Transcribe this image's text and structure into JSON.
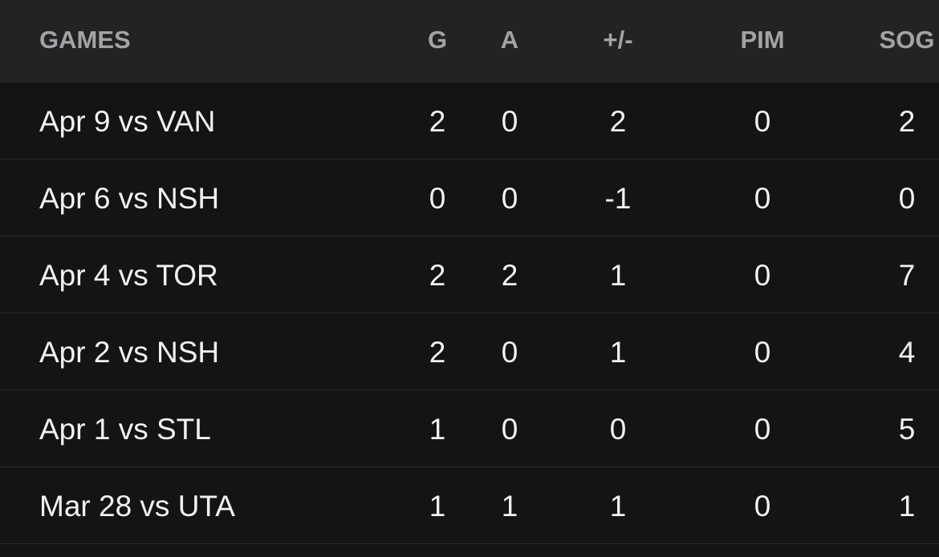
{
  "table": {
    "header": [
      "GAMES",
      "G",
      "A",
      "+/-",
      "PIM",
      "SOG"
    ],
    "rows": [
      [
        "Apr 9 vs VAN",
        2,
        0,
        2,
        0,
        2
      ],
      [
        "Apr 6 vs NSH",
        0,
        0,
        -1,
        0,
        0
      ],
      [
        "Apr 4 vs TOR",
        2,
        2,
        1,
        0,
        7
      ],
      [
        "Apr 2 vs NSH",
        2,
        0,
        1,
        0,
        4
      ],
      [
        "Apr 1 vs STL",
        1,
        0,
        0,
        0,
        5
      ],
      [
        "Mar 28 vs UTA",
        1,
        1,
        1,
        0,
        1
      ]
    ]
  }
}
